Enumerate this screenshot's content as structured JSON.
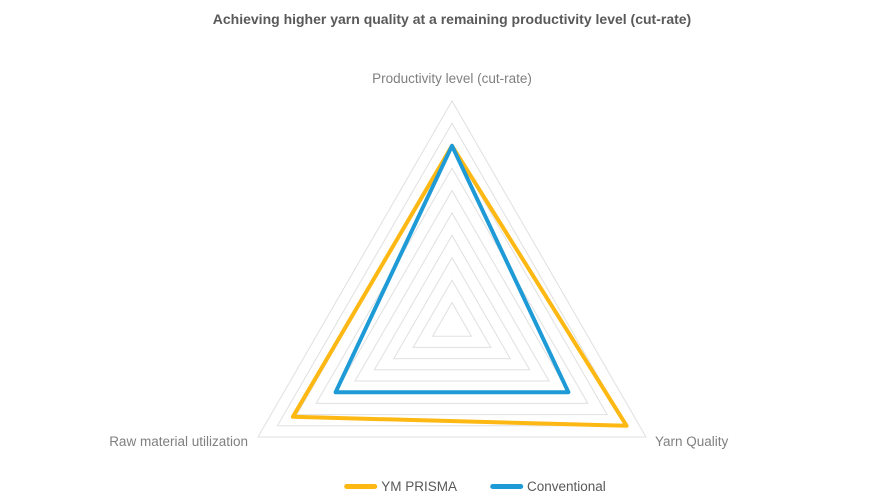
{
  "title": "Achieving higher yarn quality at a remaining productivity level (cut-rate)",
  "colors": {
    "grid": "#E0E0E0",
    "ym_prisma": "#FDB813",
    "conventional": "#1E9BD7"
  },
  "legend": {
    "items": [
      {
        "label": "YM PRISMA",
        "color": "#FDB813"
      },
      {
        "label": "Conventional",
        "color": "#1E9BD7"
      }
    ]
  },
  "chart_data": {
    "type": "radar",
    "title": "Achieving higher yarn quality at a remaining productivity level (cut-rate)",
    "categories": [
      "Productivity level (cut-rate)",
      "Yarn Quality",
      "Raw material utilization"
    ],
    "series": [
      {
        "name": "YM PRISMA",
        "color": "#FDB813",
        "values": [
          80,
          90,
          82
        ]
      },
      {
        "name": "Conventional",
        "color": "#1E9BD7",
        "values": [
          80,
          60,
          60
        ]
      }
    ],
    "max": 100,
    "grid_levels": 10,
    "grid": "on",
    "legend_position": "bottom"
  }
}
